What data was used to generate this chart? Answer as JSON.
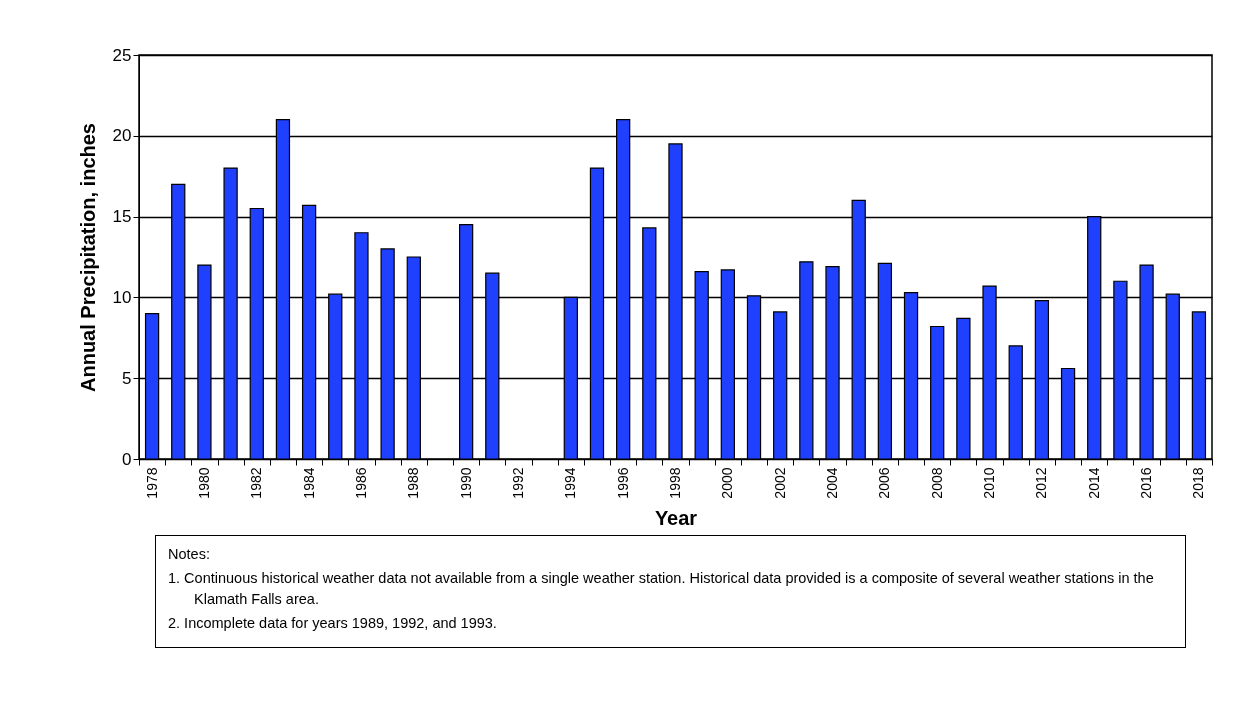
{
  "chart_data": {
    "type": "bar",
    "xlabel": "Year",
    "ylabel": "Annual Precipitation, inches",
    "categories": [
      "1978",
      null,
      "1980",
      null,
      "1982",
      null,
      "1984",
      null,
      "1986",
      null,
      "1988",
      null,
      "1990",
      null,
      "1992",
      null,
      "1994",
      null,
      "1996",
      null,
      "1998",
      null,
      "2000",
      null,
      "2002",
      null,
      "2004",
      null,
      "2006",
      null,
      "2008",
      null,
      "2010",
      null,
      "2012",
      null,
      "2014",
      null,
      "2016",
      null,
      "2018"
    ],
    "values": [
      9,
      17,
      12,
      18,
      15.5,
      21,
      15.7,
      10.2,
      14,
      13,
      12.5,
      null,
      14.5,
      11.5,
      null,
      null,
      10,
      18,
      21,
      14.3,
      19.5,
      11.6,
      11.7,
      10.1,
      9.1,
      12.2,
      11.9,
      16,
      12.1,
      10.3,
      8.2,
      8.7,
      10.7,
      7,
      9.8,
      5.6,
      15,
      11,
      12,
      10.2,
      9.1
    ],
    "color": "#2040ff",
    "ylim": [
      0,
      25
    ],
    "yticks": [
      0,
      5,
      10,
      15,
      20,
      25
    ],
    "grid": "y",
    "annotations": [
      "Notes:",
      "1. Continuous historical weather data not available from a single weather station. Historical data provided is a composite of several weather stations in the Klamath Falls area.",
      "2. Incomplete data for years 1989, 1992, and 1993."
    ]
  }
}
